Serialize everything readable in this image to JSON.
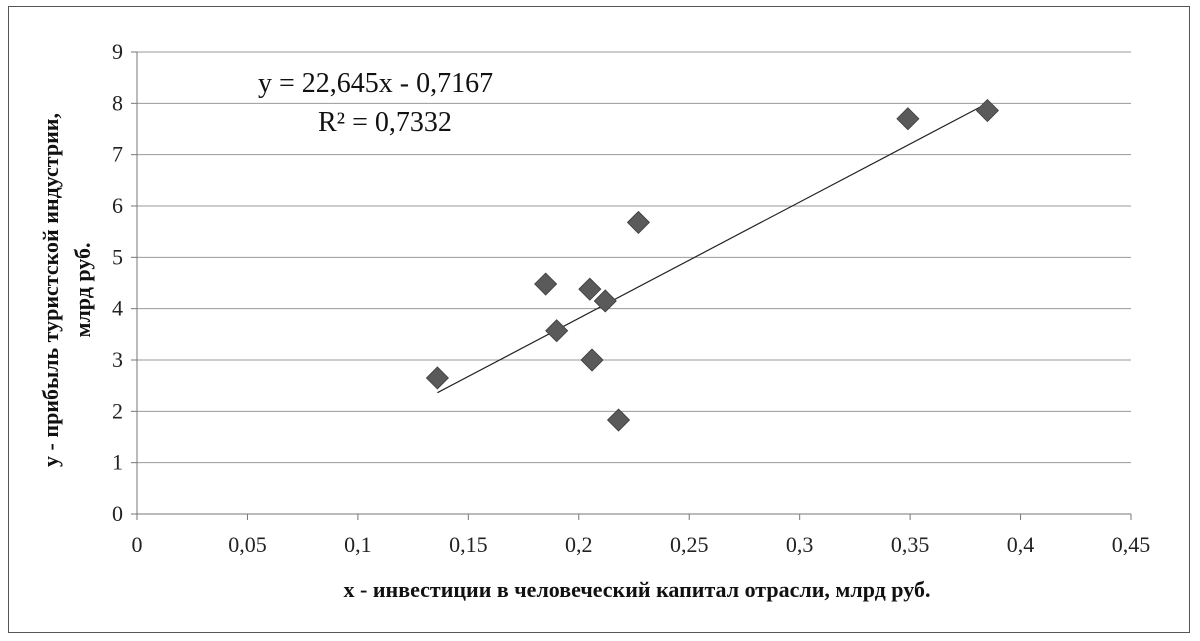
{
  "chart_data": {
    "type": "scatter",
    "xlabel": "x - инвестиции в человеческий капитал отрасли, млрд  руб.",
    "ylabel_line1": "y - прибыль туристской  индустрии,",
    "ylabel_line2": "млрд  руб.",
    "xlim": [
      0,
      0.45
    ],
    "ylim": [
      0,
      9
    ],
    "x_ticks": [
      0,
      0.05,
      0.1,
      0.15,
      0.2,
      0.25,
      0.3,
      0.35,
      0.4,
      0.45
    ],
    "x_tick_labels": [
      "0",
      "0,05",
      "0,1",
      "0,15",
      "0,2",
      "0,25",
      "0,3",
      "0,35",
      "0,4",
      "0,45"
    ],
    "y_ticks": [
      0,
      1,
      2,
      3,
      4,
      5,
      6,
      7,
      8,
      9
    ],
    "y_tick_labels": [
      "0",
      "1",
      "2",
      "3",
      "4",
      "5",
      "6",
      "7",
      "8",
      "9"
    ],
    "grid": "horizontal",
    "marker": "diamond",
    "marker_color": "#5a5a5a",
    "points": [
      {
        "x": 0.136,
        "y": 2.65
      },
      {
        "x": 0.185,
        "y": 4.48
      },
      {
        "x": 0.19,
        "y": 3.57
      },
      {
        "x": 0.205,
        "y": 4.38
      },
      {
        "x": 0.206,
        "y": 3.0
      },
      {
        "x": 0.212,
        "y": 4.15
      },
      {
        "x": 0.218,
        "y": 1.83
      },
      {
        "x": 0.227,
        "y": 5.68
      },
      {
        "x": 0.349,
        "y": 7.7
      },
      {
        "x": 0.385,
        "y": 7.86
      }
    ],
    "trendline": {
      "type": "linear",
      "slope": 22.645,
      "intercept": -0.7167,
      "x_start": 0.136,
      "x_end": 0.385
    },
    "equation_text": "y = 22,645x  - 0,7167",
    "r2_label": "R² = 0,7332"
  }
}
